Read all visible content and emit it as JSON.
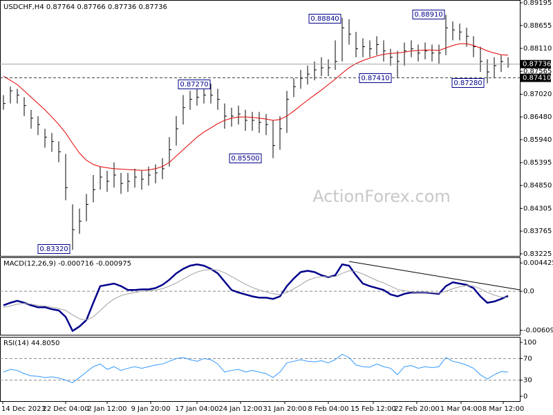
{
  "chart_data": [
    {
      "type": "ohlc",
      "title": "USDCHF,H4  0.87764 0.87766 0.87736 0.87736",
      "watermark": "ActionForex.com",
      "color": "#000000",
      "high": [
        0.87,
        0.872,
        0.8715,
        0.8695,
        0.8665,
        0.865,
        0.862,
        0.861,
        0.859,
        0.856,
        0.844,
        0.843,
        0.8465,
        0.851,
        0.853,
        0.852,
        0.854,
        0.8515,
        0.8515,
        0.8525,
        0.852,
        0.853,
        0.8535,
        0.855,
        0.86,
        0.865,
        0.87,
        0.871,
        0.8715,
        0.872,
        0.8727,
        0.8715,
        0.868,
        0.867,
        0.8675,
        0.8665,
        0.866,
        0.866,
        0.8655,
        0.864,
        0.865,
        0.871,
        0.874,
        0.876,
        0.877,
        0.878,
        0.879,
        0.8785,
        0.883,
        0.8884,
        0.888,
        0.885,
        0.8835,
        0.883,
        0.884,
        0.883,
        0.881,
        0.8805,
        0.8825,
        0.883,
        0.882,
        0.8825,
        0.882,
        0.882,
        0.8891,
        0.8875,
        0.887,
        0.886,
        0.884,
        0.8815,
        0.8785,
        0.879,
        0.8795,
        0.879
      ],
      "low": [
        0.8665,
        0.868,
        0.868,
        0.865,
        0.862,
        0.8605,
        0.8575,
        0.8565,
        0.854,
        0.845,
        0.8332,
        0.837,
        0.84,
        0.8445,
        0.8475,
        0.847,
        0.848,
        0.8465,
        0.847,
        0.848,
        0.8475,
        0.8485,
        0.849,
        0.85,
        0.853,
        0.858,
        0.863,
        0.8665,
        0.8675,
        0.868,
        0.868,
        0.8665,
        0.862,
        0.8625,
        0.863,
        0.8615,
        0.8615,
        0.861,
        0.8605,
        0.855,
        0.857,
        0.861,
        0.8695,
        0.8715,
        0.8725,
        0.8735,
        0.8745,
        0.8745,
        0.876,
        0.878,
        0.882,
        0.879,
        0.879,
        0.879,
        0.8795,
        0.878,
        0.877,
        0.8741,
        0.877,
        0.879,
        0.878,
        0.8785,
        0.878,
        0.8775,
        0.8795,
        0.883,
        0.883,
        0.8815,
        0.879,
        0.8755,
        0.8728,
        0.874,
        0.8755,
        0.8765
      ],
      "close": [
        0.868,
        0.871,
        0.87,
        0.8675,
        0.8645,
        0.863,
        0.86,
        0.859,
        0.8565,
        0.848,
        0.838,
        0.84,
        0.844,
        0.8475,
        0.8505,
        0.8495,
        0.851,
        0.849,
        0.8495,
        0.8505,
        0.85,
        0.851,
        0.8515,
        0.8525,
        0.857,
        0.862,
        0.867,
        0.869,
        0.8695,
        0.87,
        0.87,
        0.869,
        0.865,
        0.865,
        0.8655,
        0.864,
        0.864,
        0.8635,
        0.863,
        0.858,
        0.862,
        0.869,
        0.872,
        0.874,
        0.875,
        0.876,
        0.8765,
        0.8765,
        0.878,
        0.886,
        0.8845,
        0.881,
        0.8815,
        0.881,
        0.882,
        0.8805,
        0.879,
        0.878,
        0.8805,
        0.881,
        0.88,
        0.8805,
        0.88,
        0.88,
        0.886,
        0.8855,
        0.885,
        0.884,
        0.8815,
        0.878,
        0.8755,
        0.877,
        0.878,
        0.87736
      ],
      "ma": {
        "color": "#e00000",
        "values": [
          0.8745,
          0.8735,
          0.8725,
          0.871,
          0.8695,
          0.868,
          0.8665,
          0.8648,
          0.863,
          0.861,
          0.8585,
          0.8562,
          0.8545,
          0.8535,
          0.853,
          0.8527,
          0.8525,
          0.8524,
          0.8523,
          0.8522,
          0.8521,
          0.8522,
          0.8525,
          0.853,
          0.854,
          0.8555,
          0.857,
          0.8585,
          0.86,
          0.8612,
          0.8622,
          0.8632,
          0.864,
          0.8645,
          0.8648,
          0.8648,
          0.8647,
          0.8645,
          0.8643,
          0.864,
          0.8642,
          0.865,
          0.8662,
          0.8675,
          0.8688,
          0.87,
          0.8712,
          0.8725,
          0.8738,
          0.8752,
          0.8765,
          0.8775,
          0.8782,
          0.8788,
          0.8793,
          0.8797,
          0.8799,
          0.88,
          0.8802,
          0.8805,
          0.8806,
          0.8807,
          0.8807,
          0.8806,
          0.8812,
          0.8818,
          0.8822,
          0.8822,
          0.8818,
          0.8812,
          0.8805,
          0.88,
          0.8796,
          0.8795
        ]
      },
      "price_line": {
        "value": 0.87736,
        "label": "0.87736"
      },
      "support_line": {
        "value": 0.8741,
        "label": "0.87410"
      },
      "annotations": [
        "0.88840",
        "0.88910",
        "0.87270",
        "0.87410",
        "0.87280",
        "0.85500",
        "0.83320"
      ],
      "ylim": [
        0.83225,
        0.89195
      ],
      "yticks": [
        0.89195,
        0.88655,
        {
          "value": 0.8811,
          "label": "0.88110"
        },
        0.87565,
        {
          "value": 0.8702,
          "label": "0.87020"
        },
        {
          "value": 0.8648,
          "label": "0.86480"
        },
        {
          "value": 0.8594,
          "label": "0.85940"
        },
        0.85395,
        {
          "value": 0.8485,
          "label": "0.84850"
        },
        0.84305,
        0.83765,
        0.83225
      ],
      "x_labels": [
        "14 Dec 2023",
        "22 Dec 04:00",
        "2 Jan 12:00",
        "9 Jan 20:00",
        "17 Jan 04:00",
        "24 Jan 12:00",
        "31 Jan 20:00",
        "8 Feb 04:00",
        "15 Feb 12:00",
        "22 Feb 20:00",
        "1 Mar 04:00",
        "8 Mar 12:00"
      ]
    },
    {
      "type": "macd",
      "title": "MACD(12,26,9) -0.000716 -0.000975",
      "series": [
        {
          "color": "#00008b",
          "width": 2.5,
          "values": [
            -0.0022,
            -0.0018,
            -0.0015,
            -0.0018,
            -0.0022,
            -0.0025,
            -0.0025,
            -0.0028,
            -0.003,
            -0.004,
            -0.0062,
            -0.0055,
            -0.0045,
            -0.0018,
            0.0008,
            0.001,
            0.0012,
            0.0008,
            0.0002,
            0.0002,
            0.0003,
            0.0003,
            0.0005,
            0.001,
            0.0018,
            0.0028,
            0.0035,
            0.004,
            0.0042,
            0.004,
            0.0035,
            0.0028,
            0.0015,
            0.0002,
            -0.0002,
            -0.0005,
            -0.0008,
            -0.001,
            -0.001,
            -0.0012,
            -0.0008,
            0.0008,
            0.002,
            0.003,
            0.0032,
            0.003,
            0.0025,
            0.0022,
            0.0025,
            0.0042,
            0.004,
            0.0025,
            0.0012,
            0.0008,
            0.0005,
            0.0002,
            -0.0005,
            -0.0008,
            -0.0004,
            -0.0002,
            -0.0002,
            -0.0002,
            -0.0003,
            -0.0004,
            0.0008,
            0.0014,
            0.0012,
            0.001,
            0.0005,
            -0.0008,
            -0.0018,
            -0.0016,
            -0.0012,
            -0.000716
          ]
        },
        {
          "color": "#a0a0a0",
          "width": 1,
          "values": [
            -0.0025,
            -0.0023,
            -0.002,
            -0.0019,
            -0.002,
            -0.0022,
            -0.0023,
            -0.0025,
            -0.0027,
            -0.003,
            -0.0037,
            -0.0043,
            -0.0045,
            -0.004,
            -0.003,
            -0.002,
            -0.0012,
            -0.0007,
            -0.0004,
            -0.0002,
            0.0,
            0.0001,
            0.0002,
            0.0004,
            0.0008,
            0.0013,
            0.0019,
            0.0025,
            0.003,
            0.0033,
            0.0034,
            0.0033,
            0.0029,
            0.0023,
            0.0017,
            0.0011,
            0.0006,
            0.0002,
            -0.0001,
            -0.0004,
            -0.0005,
            -0.0002,
            0.0004,
            0.001,
            0.0017,
            0.0021,
            0.0023,
            0.0023,
            0.0023,
            0.0028,
            0.0032,
            0.0031,
            0.0027,
            0.0022,
            0.0017,
            0.0013,
            0.0008,
            0.0003,
            0.0001,
            -0.0001,
            -0.0002,
            -0.0002,
            -0.0002,
            -0.0003,
            0.0,
            0.0004,
            0.0007,
            0.0009,
            0.0008,
            0.0004,
            -0.0002,
            -0.0006,
            -0.0009,
            -0.000975
          ]
        }
      ],
      "ylim": [
        -0.0068,
        0.0052
      ],
      "yticks": [
        0.004425,
        {
          "value": 0,
          "label": "0.0"
        },
        -0.006092
      ],
      "levels": [
        0
      ]
    },
    {
      "type": "line",
      "title": "RSI(14) 44.8050",
      "series": [
        {
          "color": "#3399ff",
          "width": 1,
          "values": [
            45,
            50,
            48,
            42,
            38,
            37,
            35,
            36,
            34,
            30,
            25,
            35,
            45,
            55,
            60,
            50,
            55,
            48,
            52,
            55,
            52,
            55,
            58,
            60,
            65,
            70,
            72,
            68,
            65,
            70,
            68,
            60,
            45,
            48,
            50,
            45,
            48,
            45,
            42,
            35,
            45,
            62,
            65,
            68,
            65,
            64,
            66,
            62,
            68,
            78,
            72,
            58,
            55,
            54,
            60,
            55,
            52,
            40,
            55,
            57,
            52,
            55,
            53,
            55,
            72,
            65,
            62,
            58,
            52,
            40,
            32,
            40,
            46,
            44.805
          ]
        }
      ],
      "ylim": [
        -9,
        109
      ],
      "yticks": [
        100,
        70,
        30,
        0
      ],
      "levels": [
        70,
        30
      ]
    }
  ]
}
